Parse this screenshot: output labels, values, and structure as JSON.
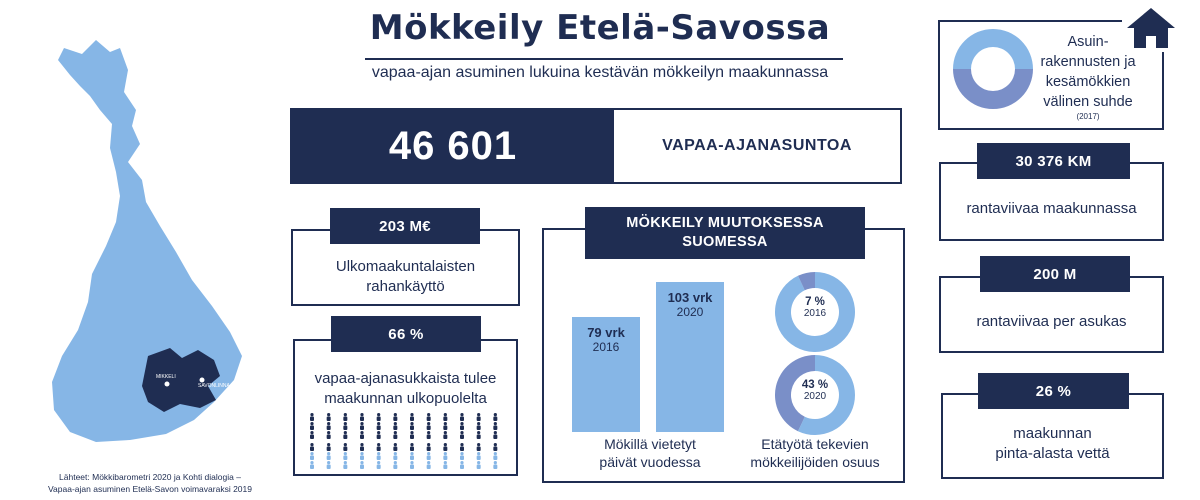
{
  "header": {
    "title": "Mökkeily Etelä-Savossa",
    "subtitle": "vapaa-ajan asuminen lukuina kestävän mökkeilyn maakunnassa"
  },
  "map": {
    "city1": "MIKKELI",
    "city2": "SAVONLINNA",
    "colors": {
      "country": "#86b6e6",
      "region": "#1f2d52"
    }
  },
  "source": {
    "line1": "Lähteet: Mökkibarometri 2020 ja Kohti dialogia –",
    "line2": "Vapaa-ajan asuminen Etelä-Savon voimavaraksi  2019"
  },
  "headline": {
    "value": "46 601",
    "label": "VAPAA-AJANASUNTOA"
  },
  "spending": {
    "value": "203 M€",
    "line1": "Ulkomaakuntalaisten",
    "line2": "rahankäyttö"
  },
  "visitors": {
    "value": "66 %",
    "line1": "vapaa-ajanasukkaista tulee",
    "line2": "maakunnan ulkopuolelta",
    "people_total": 24,
    "people_highlight": 16
  },
  "change": {
    "title_line1": "MÖKKEILY MUUTOKSESSA",
    "title_line2": "SUOMESSA",
    "bars": [
      {
        "value": "79 vrk",
        "year": "2016",
        "days": 79
      },
      {
        "value": "103 vrk",
        "year": "2020",
        "days": 103
      }
    ],
    "bars_caption1": "Mökillä vietetyt",
    "bars_caption2": "päivät vuodessa",
    "donuts": [
      {
        "value": "7 %",
        "year": "2016",
        "percent": 7
      },
      {
        "value": "43 %",
        "year": "2020",
        "percent": 43
      }
    ],
    "donuts_caption1": "Etätyötä tekevien",
    "donuts_caption2": "mökkeilijöiden osuus"
  },
  "ratio": {
    "line1": "Asuin-",
    "line2": "rakennusten ja",
    "line3": "kesämökkien",
    "line4": "välinen suhde",
    "year": "(2017)",
    "share_top_percent": 50
  },
  "shoreline": {
    "value": "30 376 KM",
    "label": "rantaviivaa maakunnassa"
  },
  "per_capita": {
    "value": "200 M",
    "label": "rantaviivaa per asukas"
  },
  "water": {
    "value": "26 %",
    "line1": "maakunnan",
    "line2": "pinta-alasta vettä"
  },
  "colors": {
    "navy": "#1f2d52",
    "light_blue": "#86b6e6",
    "mid_blue": "#7a8fc8"
  }
}
